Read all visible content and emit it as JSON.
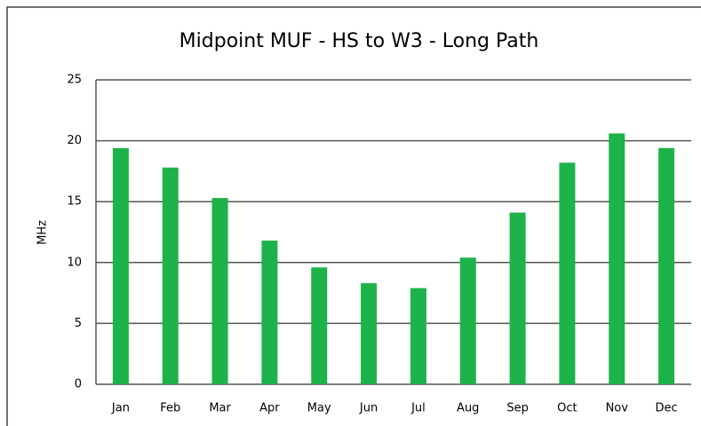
{
  "chart_data": {
    "type": "bar",
    "title": "Midpoint MUF - HS to W3 - Long Path",
    "y_label": "MHz",
    "categories": [
      "Jan",
      "Feb",
      "Mar",
      "Apr",
      "May",
      "Jun",
      "Jul",
      "Aug",
      "Sep",
      "Oct",
      "Nov",
      "Dec"
    ],
    "values": [
      19.4,
      17.8,
      15.3,
      11.8,
      9.6,
      8.3,
      7.9,
      10.4,
      14.1,
      18.2,
      20.6,
      19.4
    ],
    "color": "#1db24a",
    "ylim": [
      0,
      25
    ],
    "yticks": [
      0,
      5,
      10,
      15,
      20,
      25
    ],
    "grid": true
  }
}
